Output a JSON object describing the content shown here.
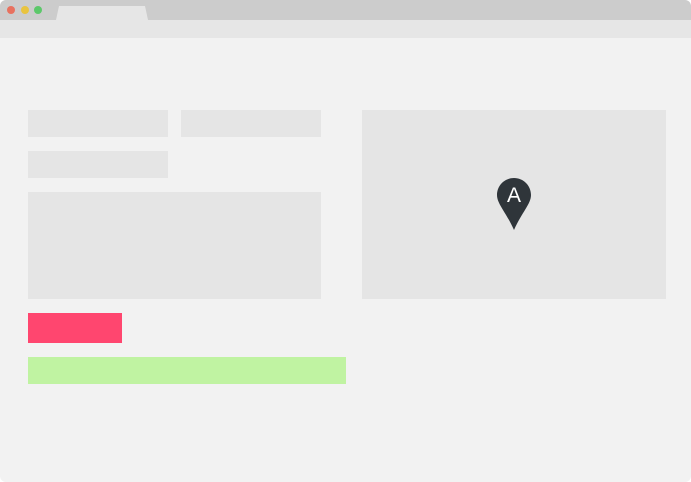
{
  "window": {
    "tab_title": "",
    "colors": {
      "close": "#e8715f",
      "minimize": "#e9c43f",
      "maximize": "#5cc86a"
    }
  },
  "form": {
    "fields": [
      {
        "value": "",
        "placeholder": ""
      },
      {
        "value": "",
        "placeholder": ""
      },
      {
        "value": "",
        "placeholder": ""
      }
    ],
    "message": {
      "value": "",
      "placeholder": ""
    },
    "submit": {
      "label": "",
      "color": "#ff466f"
    },
    "success": {
      "text": "",
      "color": "#c0f3a2"
    }
  },
  "map": {
    "marker_label": "A",
    "marker_icon": "map-pin-icon",
    "marker_color": "#2f353a"
  }
}
